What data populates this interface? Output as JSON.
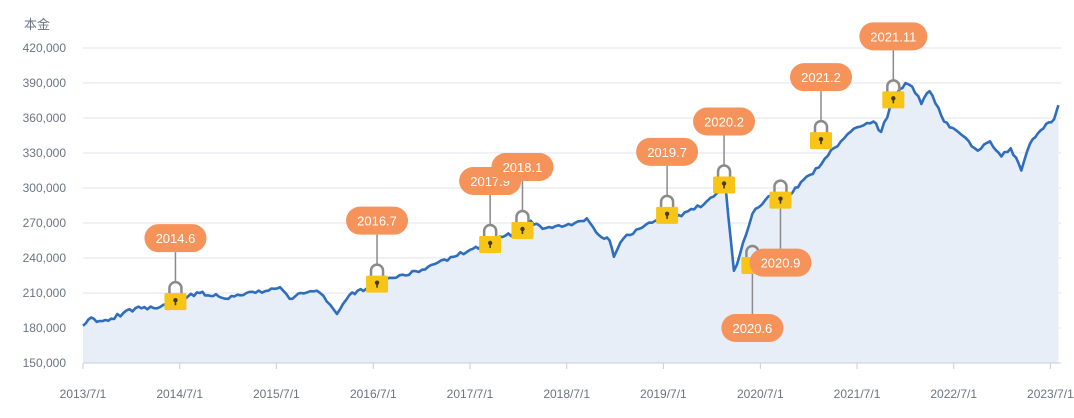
{
  "chart_data": {
    "type": "line",
    "ylabel": "本金",
    "ylim": [
      150000,
      420000
    ],
    "y_ticks": [
      "150,000",
      "180,000",
      "210,000",
      "240,000",
      "270,000",
      "300,000",
      "330,000",
      "360,000",
      "390,000",
      "420,000"
    ],
    "y_tick_values": [
      150000,
      180000,
      210000,
      240000,
      270000,
      300000,
      330000,
      360000,
      390000,
      420000
    ],
    "xlim": [
      "2013-07-01",
      "2023-08-10"
    ],
    "x_ticks": [
      "2013/7/1",
      "2014/7/1",
      "2015/7/1",
      "2016/7/1",
      "2017/7/1",
      "2018/7/1",
      "2019/7/1",
      "2020/7/1",
      "2021/7/1",
      "2022/7/1",
      "2023/7/1"
    ],
    "x_tick_dates": [
      "2013-07-01",
      "2014-07-01",
      "2015-07-01",
      "2016-07-01",
      "2017-07-01",
      "2018-07-01",
      "2019-07-01",
      "2020-07-01",
      "2021-07-01",
      "2022-07-01",
      "2023-07-01"
    ],
    "grid": true,
    "area_fill": true,
    "colors": {
      "line": "#2f6ebf",
      "area": "#e8eef8",
      "badge": "#f5935a",
      "lock_body": "#f6c517",
      "lock_shackle": "#8a8a8a",
      "grid": "#dfe3ec"
    },
    "series": [
      {
        "x": [
          "2013-07-01",
          "2013-08-01",
          "2013-09-01",
          "2013-10-15",
          "2013-12-01",
          "2014-01-15",
          "2014-03-01",
          "2014-05-01",
          "2014-06-15",
          "2014-08-01",
          "2014-09-15",
          "2014-10-15",
          "2014-11-15",
          "2015-01-01",
          "2015-02-15",
          "2015-04-01",
          "2015-06-01",
          "2015-07-15",
          "2015-08-20",
          "2015-10-01",
          "2015-12-01",
          "2016-01-20",
          "2016-02-15",
          "2016-04-01",
          "2016-06-15",
          "2016-07-15",
          "2016-09-01",
          "2016-11-01",
          "2017-01-01",
          "2017-03-01",
          "2017-05-01",
          "2017-07-01",
          "2017-09-15",
          "2017-11-01",
          "2018-01-15",
          "2018-02-15",
          "2018-04-01",
          "2018-06-01",
          "2018-08-01",
          "2018-09-15",
          "2018-10-20",
          "2018-12-10",
          "2018-12-26",
          "2019-02-01",
          "2019-04-01",
          "2019-06-01",
          "2019-07-15",
          "2019-08-15",
          "2019-10-01",
          "2019-12-01",
          "2020-02-01",
          "2020-02-20",
          "2020-03-23",
          "2020-04-15",
          "2020-06-01",
          "2020-08-01",
          "2020-09-15",
          "2020-10-30",
          "2020-12-01",
          "2021-01-15",
          "2021-03-01",
          "2021-05-01",
          "2021-07-01",
          "2021-09-01",
          "2021-09-30",
          "2021-11-15",
          "2021-12-31",
          "2022-01-25",
          "2022-03-01",
          "2022-04-01",
          "2022-05-15",
          "2022-06-16",
          "2022-08-15",
          "2022-09-30",
          "2022-11-15",
          "2022-12-28",
          "2023-02-01",
          "2023-03-13",
          "2023-04-15",
          "2023-05-15",
          "2023-06-15",
          "2023-07-15",
          "2023-07-31"
        ],
        "y": [
          182000,
          189000,
          186000,
          188000,
          193000,
          197000,
          196000,
          200000,
          203000,
          207000,
          210000,
          208000,
          209000,
          205000,
          208000,
          211000,
          212000,
          215000,
          205000,
          210000,
          212000,
          200000,
          192000,
          208000,
          215000,
          218000,
          223000,
          225000,
          230000,
          236000,
          241000,
          247000,
          252000,
          258000,
          264000,
          272000,
          265000,
          268000,
          270000,
          274000,
          262000,
          255000,
          241000,
          257000,
          265000,
          272000,
          277000,
          274000,
          280000,
          286000,
          298000,
          303000,
          229000,
          243000,
          278000,
          293000,
          290000,
          296000,
          305000,
          312000,
          325000,
          340000,
          352000,
          357000,
          348000,
          376000,
          390000,
          387000,
          372000,
          383000,
          362000,
          352000,
          343000,
          332000,
          340000,
          327000,
          334000,
          315000,
          338000,
          347000,
          355000,
          359000,
          371000
        ]
      }
    ],
    "annotations": [
      {
        "label": "2014.6",
        "date": "2014-06-15",
        "value": 203000,
        "placement": "above"
      },
      {
        "label": "2016.7",
        "date": "2016-07-15",
        "value": 218000,
        "placement": "above"
      },
      {
        "label": "2017.9",
        "date": "2017-09-15",
        "value": 252000,
        "placement": "above"
      },
      {
        "label": "2018.1",
        "date": "2018-01-15",
        "value": 264000,
        "placement": "above"
      },
      {
        "label": "2019.7",
        "date": "2019-07-15",
        "value": 277000,
        "placement": "above"
      },
      {
        "label": "2020.2",
        "date": "2020-02-15",
        "value": 303000,
        "placement": "above"
      },
      {
        "label": "2020.6",
        "date": "2020-06-01",
        "value": 234000,
        "placement": "below"
      },
      {
        "label": "2020.9",
        "date": "2020-09-15",
        "value": 290000,
        "placement": "below"
      },
      {
        "label": "2021.2",
        "date": "2021-02-15",
        "value": 341000,
        "placement": "above"
      },
      {
        "label": "2021.11",
        "date": "2021-11-15",
        "value": 376000,
        "placement": "above"
      }
    ]
  }
}
